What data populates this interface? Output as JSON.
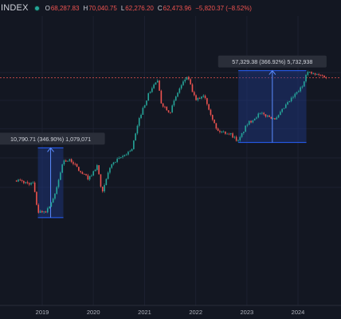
{
  "header": {
    "symbol": "INDEX",
    "open_label": "O",
    "open": "68,287.83",
    "high_label": "H",
    "high": "70,040.75",
    "low_label": "L",
    "low": "62,276.20",
    "close_label": "C",
    "close": "62,473.96",
    "change": "−5,820.37 (−8.52%)"
  },
  "colors": {
    "background": "#131722",
    "up": "#26a69a",
    "down": "#ef5350",
    "measure_fill": "#1e3a8a",
    "measure_line": "#2962ff",
    "text": "#d1d4dc"
  },
  "chart_data": {
    "type": "candlestick",
    "x_ticks": [
      "2019",
      "2020",
      "2021",
      "2022",
      "2023",
      "2024"
    ],
    "y_scale": "log",
    "price_line": 62473.96,
    "approx_close_series": [
      {
        "date": "2018-07",
        "value": 7000
      },
      {
        "date": "2018-09",
        "value": 6600
      },
      {
        "date": "2018-11",
        "value": 6400
      },
      {
        "date": "2018-12",
        "value": 3500
      },
      {
        "date": "2019-02",
        "value": 3600
      },
      {
        "date": "2019-04",
        "value": 5000
      },
      {
        "date": "2019-06",
        "value": 10700
      },
      {
        "date": "2019-08",
        "value": 10500
      },
      {
        "date": "2019-10",
        "value": 8200
      },
      {
        "date": "2019-12",
        "value": 7200
      },
      {
        "date": "2020-02",
        "value": 9600
      },
      {
        "date": "2020-03",
        "value": 5000
      },
      {
        "date": "2020-05",
        "value": 9500
      },
      {
        "date": "2020-08",
        "value": 11700
      },
      {
        "date": "2020-10",
        "value": 13500
      },
      {
        "date": "2020-12",
        "value": 28000
      },
      {
        "date": "2021-02",
        "value": 45000
      },
      {
        "date": "2021-04",
        "value": 60000
      },
      {
        "date": "2021-05",
        "value": 36000
      },
      {
        "date": "2021-07",
        "value": 30000
      },
      {
        "date": "2021-09",
        "value": 48000
      },
      {
        "date": "2021-11",
        "value": 65000
      },
      {
        "date": "2022-01",
        "value": 38000
      },
      {
        "date": "2022-03",
        "value": 44000
      },
      {
        "date": "2022-06",
        "value": 20000
      },
      {
        "date": "2022-09",
        "value": 19000
      },
      {
        "date": "2022-11",
        "value": 16000
      },
      {
        "date": "2023-01",
        "value": 23000
      },
      {
        "date": "2023-04",
        "value": 29000
      },
      {
        "date": "2023-08",
        "value": 26000
      },
      {
        "date": "2023-10",
        "value": 34000
      },
      {
        "date": "2023-12",
        "value": 42000
      },
      {
        "date": "2024-02",
        "value": 52000
      },
      {
        "date": "2024-03",
        "value": 71000
      },
      {
        "date": "2024-05",
        "value": 67000
      },
      {
        "date": "2024-07",
        "value": 65000
      },
      {
        "date": "2024-08",
        "value": 62474
      }
    ],
    "measures": [
      {
        "label": "10,790.71 (346.90%) 1,079,071",
        "change": 10790.71,
        "percent": 346.9,
        "from_date": "2018-12",
        "to_date": "2019-06",
        "from": 3110,
        "to": 13900
      },
      {
        "label": "57,329.38 (366.92%) 5,732,938",
        "change": 57329.38,
        "percent": 366.92,
        "from_date": "2022-11",
        "to_date": "2024-03",
        "from": 15620,
        "to": 72950
      }
    ]
  }
}
